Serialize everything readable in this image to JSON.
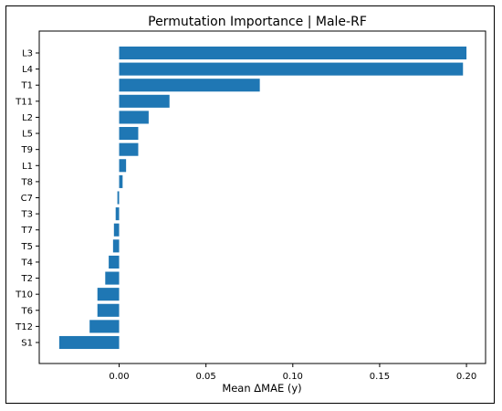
{
  "chart_data": {
    "type": "bar",
    "orientation": "horizontal",
    "title": "Permutation Importance | Male-RF",
    "xlabel": "Mean ΔMAE (y)",
    "ylabel": "",
    "xlim": [
      -0.046,
      0.211
    ],
    "xticks": [
      0.0,
      0.05,
      0.1,
      0.15,
      0.2
    ],
    "xtick_labels": [
      "0.00",
      "0.05",
      "0.10",
      "0.15",
      "0.20"
    ],
    "grid": false,
    "legend": null,
    "bar_color": "#1f77b4",
    "categories": [
      "L3",
      "L4",
      "T1",
      "T11",
      "L2",
      "L5",
      "T9",
      "L1",
      "T8",
      "C7",
      "T3",
      "T7",
      "T5",
      "T4",
      "T2",
      "T10",
      "T6",
      "T12",
      "S1"
    ],
    "values": [
      0.2,
      0.198,
      0.081,
      0.029,
      0.017,
      0.011,
      0.011,
      0.004,
      0.002,
      -0.001,
      -0.002,
      -0.003,
      -0.0035,
      -0.006,
      -0.008,
      -0.0125,
      -0.0125,
      -0.017,
      -0.0345
    ]
  }
}
